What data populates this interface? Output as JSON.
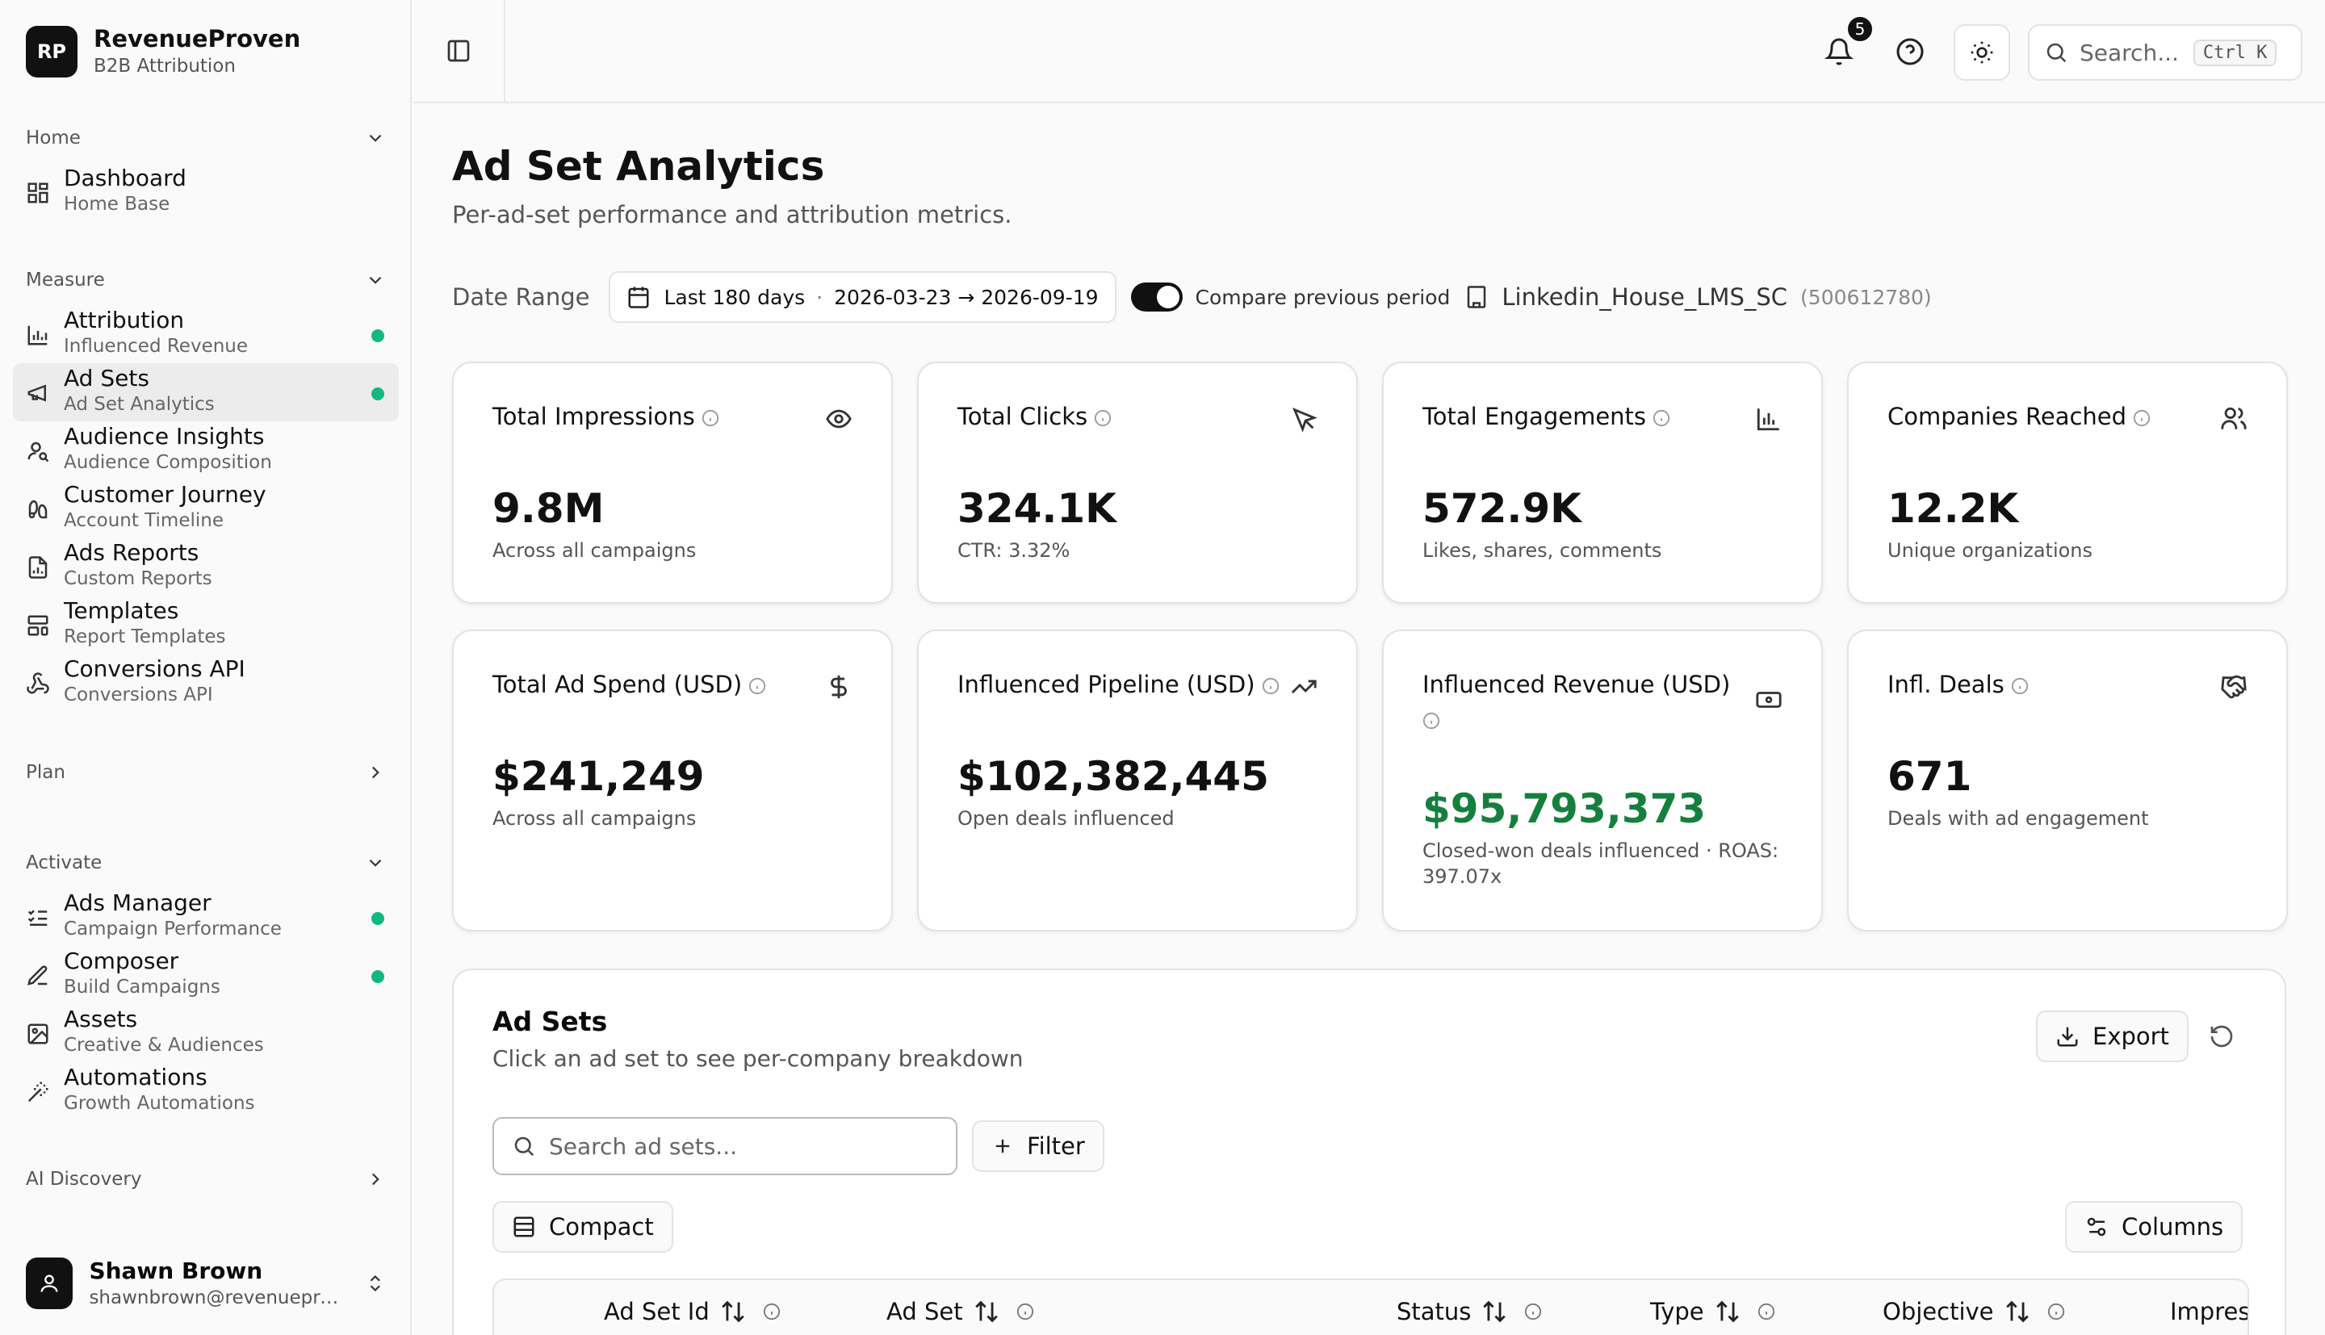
{
  "brand": {
    "initials": "RP",
    "name": "RevenueProven",
    "subtitle": "B2B Attribution"
  },
  "nav": {
    "home": {
      "label": "Home",
      "items": [
        {
          "label": "Dashboard",
          "sub": "Home Base"
        }
      ]
    },
    "measure": {
      "label": "Measure",
      "items": [
        {
          "label": "Attribution",
          "sub": "Influenced Revenue",
          "dot": true
        },
        {
          "label": "Ad Sets",
          "sub": "Ad Set Analytics",
          "dot": true,
          "active": true
        },
        {
          "label": "Audience Insights",
          "sub": "Audience Composition"
        },
        {
          "label": "Customer Journey",
          "sub": "Account Timeline"
        },
        {
          "label": "Ads Reports",
          "sub": "Custom Reports"
        },
        {
          "label": "Templates",
          "sub": "Report Templates"
        },
        {
          "label": "Conversions API",
          "sub": "Conversions API"
        }
      ]
    },
    "plan": {
      "label": "Plan"
    },
    "activate": {
      "label": "Activate",
      "items": [
        {
          "label": "Ads Manager",
          "sub": "Campaign Performance",
          "dot": true
        },
        {
          "label": "Composer",
          "sub": "Build Campaigns",
          "dot": true
        },
        {
          "label": "Assets",
          "sub": "Creative & Audiences"
        },
        {
          "label": "Automations",
          "sub": "Growth Automations"
        }
      ]
    },
    "ai": {
      "label": "AI Discovery"
    }
  },
  "user": {
    "name": "Shawn Brown",
    "email": "shawnbrown@revenueproven.com"
  },
  "topbar": {
    "notifications": "5",
    "search_placeholder": "Search...",
    "shortcut": "Ctrl K"
  },
  "page": {
    "title": "Ad Set Analytics",
    "subtitle": "Per-ad-set performance and attribution metrics."
  },
  "filters": {
    "date_label": "Date Range",
    "preset": "Last 180 days",
    "separator": "·",
    "range": "2026-03-23 → 2026-09-19",
    "compare_label": "Compare previous period",
    "account_name": "Linkedin_House_LMS_SC",
    "account_id": "(500612780)"
  },
  "cards": [
    {
      "title": "Total Impressions",
      "value": "9.8M",
      "desc": "Across all campaigns",
      "icon": "eye-icon"
    },
    {
      "title": "Total Clicks",
      "value": "324.1K",
      "desc": "CTR: 3.32%",
      "icon": "cursor-icon"
    },
    {
      "title": "Total Engagements",
      "value": "572.9K",
      "desc": "Likes, shares, comments",
      "icon": "bar-chart-icon"
    },
    {
      "title": "Companies Reached",
      "value": "12.2K",
      "desc": "Unique organizations",
      "icon": "users-icon"
    },
    {
      "title": "Total Ad Spend (USD)",
      "value": "$241,249",
      "desc": "Across all campaigns",
      "icon": "dollar-icon"
    },
    {
      "title": "Influenced Pipeline (USD)",
      "value": "$102,382,445",
      "desc": "Open deals influenced",
      "icon": "trending-up-icon"
    },
    {
      "title": "Influenced Revenue (USD)",
      "value": "$95,793,373",
      "desc": "Closed-won deals influenced · ROAS: 397.07x",
      "icon": "banknote-icon",
      "color": "#15803d"
    },
    {
      "title": "Infl. Deals",
      "value": "671",
      "desc": "Deals with ad engagement",
      "icon": "handshake-icon"
    }
  ],
  "adsets": {
    "title": "Ad Sets",
    "subtitle": "Click an ad set to see per-company breakdown",
    "export_label": "Export",
    "search_placeholder": "Search ad sets...",
    "filter_label": "Filter",
    "compact_label": "Compact",
    "columns_label": "Columns",
    "columns": [
      "Ad Set Id",
      "Ad Set",
      "Status",
      "Type",
      "Objective",
      "Impres"
    ]
  }
}
